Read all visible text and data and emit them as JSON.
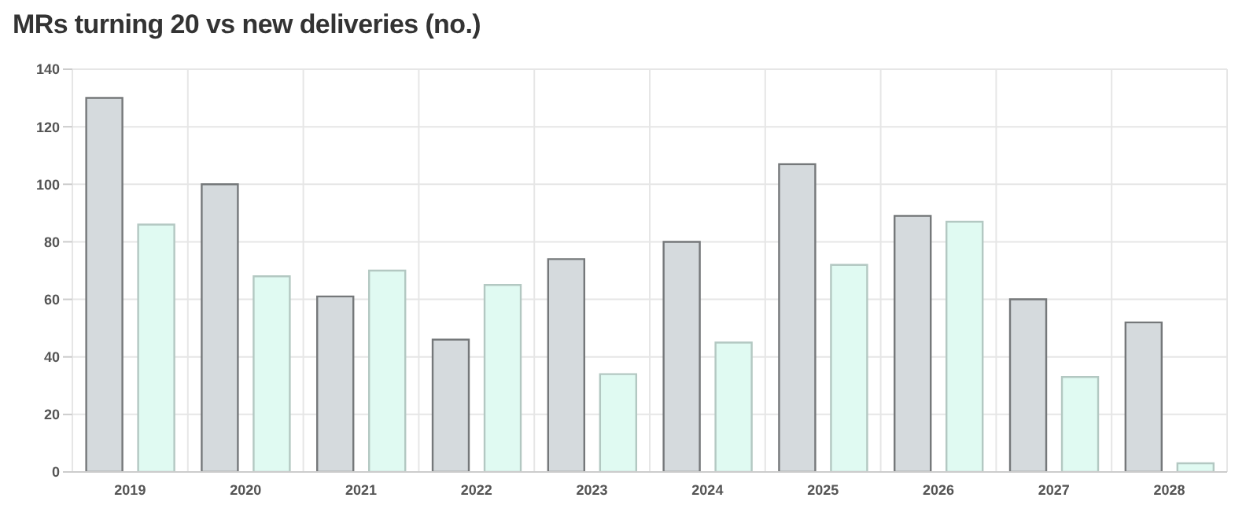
{
  "chart_data": {
    "type": "bar",
    "title": "MRs turning 20 vs new deliveries (no.)",
    "categories": [
      "2019",
      "2020",
      "2021",
      "2022",
      "2023",
      "2024",
      "2025",
      "2026",
      "2027",
      "2028"
    ],
    "series": [
      {
        "color": "#d5dadd",
        "values": [
          130,
          100,
          61,
          46,
          74,
          80,
          107,
          89,
          60,
          52
        ]
      },
      {
        "color": "#e0faf2",
        "values": [
          86,
          68,
          70,
          65,
          34,
          45,
          72,
          87,
          33,
          3
        ]
      }
    ],
    "ylim": [
      0,
      140
    ],
    "yticks": [
      0,
      20,
      40,
      60,
      80,
      100,
      120,
      140
    ],
    "grid": true,
    "legend": false
  }
}
